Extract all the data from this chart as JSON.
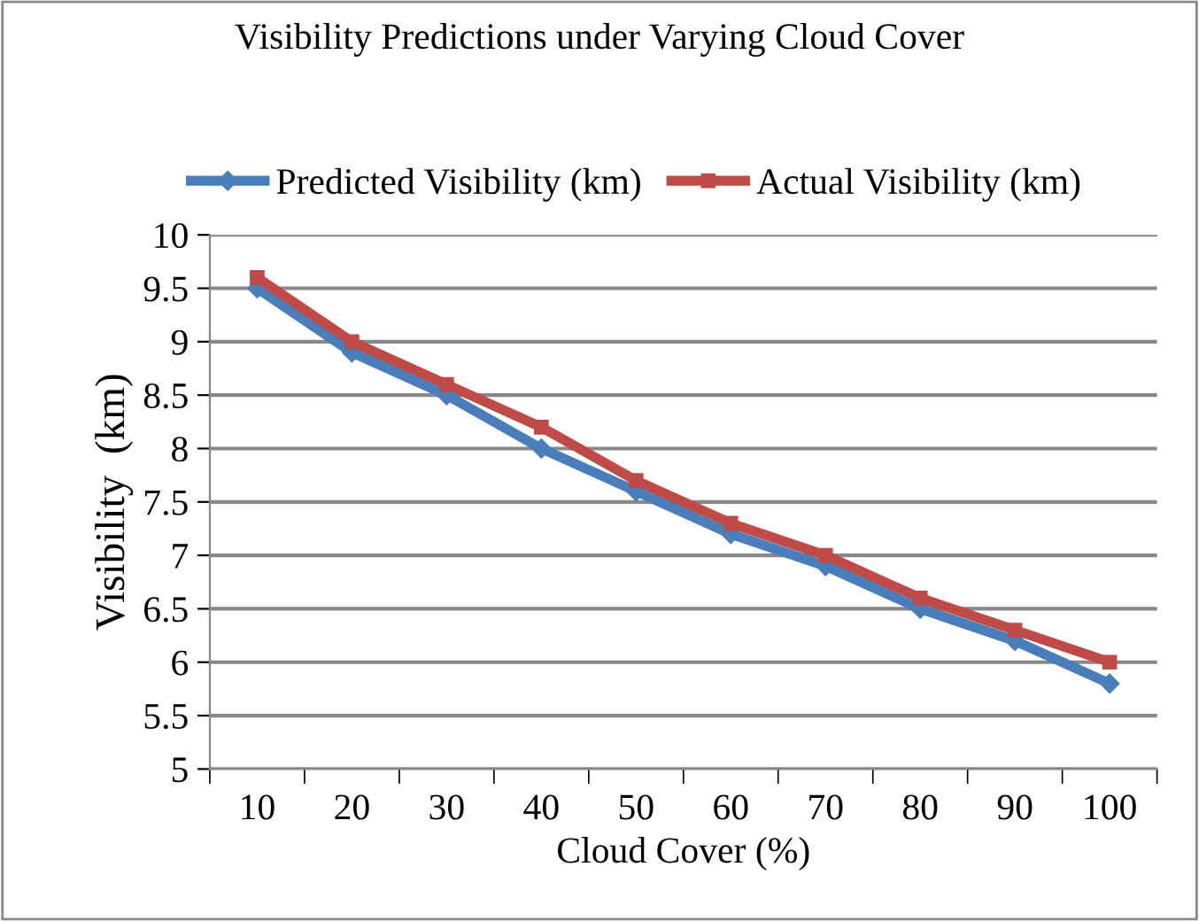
{
  "chart_data": {
    "type": "line",
    "title": "Visibility Predictions under Varying Cloud Cover",
    "xlabel": "Cloud Cover (%)",
    "ylabel": "Visibility  (km)",
    "categories": [
      "10",
      "20",
      "30",
      "40",
      "50",
      "60",
      "70",
      "80",
      "90",
      "100"
    ],
    "series": [
      {
        "name": "Predicted Visibility (km)",
        "color": "#4a7ebb",
        "values": [
          9.5,
          8.9,
          8.5,
          8.0,
          7.6,
          7.2,
          6.9,
          6.5,
          6.2,
          5.8
        ],
        "marker": "diamond"
      },
      {
        "name": "Actual Visibility (km)",
        "color": "#be4b48",
        "values": [
          9.6,
          9.0,
          8.6,
          8.2,
          7.7,
          7.3,
          7.0,
          6.6,
          6.3,
          6.0
        ],
        "marker": "square"
      }
    ],
    "ylim": [
      5,
      10
    ],
    "yticks": [
      5,
      5.5,
      6,
      6.5,
      7,
      7.5,
      8,
      8.5,
      9,
      9.5,
      10
    ],
    "grid": "y",
    "legend": "top",
    "line_style": "solid"
  }
}
